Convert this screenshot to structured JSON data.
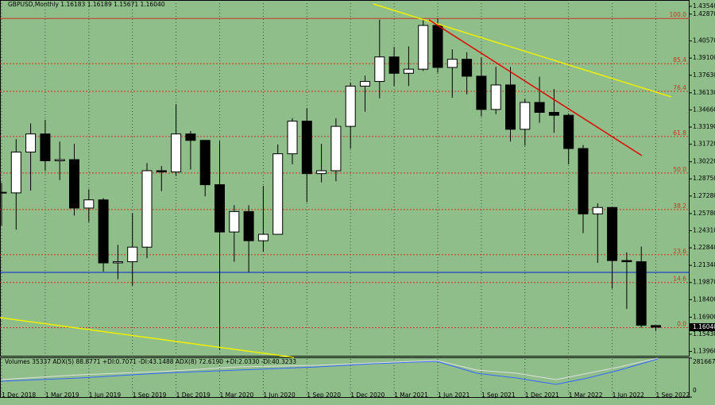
{
  "chart_data": {
    "type": "candlestick",
    "title": "GBPUSD,Monthly  1.16183 1.16189 1.15671 1.16040",
    "categories": [
      "1 Dec 2018",
      null,
      null,
      "1 Mar 2019",
      null,
      null,
      "1 Jun 2019",
      null,
      null,
      "1 Sep 2019",
      null,
      null,
      "1 Dec 2019",
      null,
      null,
      "1 Mar 2020",
      null,
      null,
      "1 Jun 2020",
      null,
      null,
      "1 Sep 2020",
      null,
      null,
      "1 Dec 2020",
      null,
      null,
      "1 Mar 2021",
      null,
      null,
      "1 Jun 2021",
      null,
      null,
      "1 Sep 2021",
      null,
      null,
      "1 Dec 2021",
      null,
      null,
      "1 Mar 2022",
      null,
      null,
      "1 Jun 2022",
      null,
      null,
      "1 Sep 2022"
    ],
    "open": [
      1.276,
      1.2755,
      1.3105,
      1.326,
      1.303,
      1.304,
      1.2625,
      1.2695,
      1.2155,
      1.2165,
      1.229,
      1.2945,
      1.2935,
      1.326,
      1.3205,
      1.2825,
      1.242,
      1.2595,
      1.2345,
      1.24,
      1.309,
      1.337,
      1.292,
      1.2945,
      1.3325,
      1.367,
      1.371,
      1.392,
      1.378,
      1.3815,
      1.419,
      1.383,
      1.39,
      1.3755,
      1.347,
      1.368,
      1.33,
      1.353,
      1.3445,
      1.342,
      1.3135,
      1.2575,
      1.263,
      1.2175,
      1.2165,
      1.16183
    ],
    "high": [
      1.284,
      1.3215,
      1.335,
      1.338,
      1.3195,
      1.3175,
      1.2785,
      1.271,
      1.231,
      1.258,
      1.301,
      1.2985,
      1.3515,
      1.3285,
      1.32,
      1.32,
      1.265,
      1.265,
      1.2815,
      1.317,
      1.3395,
      1.348,
      1.3175,
      1.3395,
      1.37,
      1.376,
      1.424,
      1.4005,
      1.401,
      1.4235,
      1.425,
      1.3985,
      1.396,
      1.3915,
      1.3835,
      1.3835,
      1.356,
      1.375,
      1.3645,
      1.3435,
      1.3165,
      1.2665,
      1.2615,
      1.2245,
      1.2295,
      1.16189
    ],
    "low": [
      1.2475,
      1.244,
      1.2775,
      1.2945,
      1.2865,
      1.256,
      1.2505,
      1.208,
      1.2015,
      1.196,
      1.2195,
      1.277,
      1.29,
      1.2955,
      1.2725,
      1.141,
      1.2165,
      1.2075,
      1.225,
      1.24,
      1.3,
      1.2675,
      1.2845,
      1.2855,
      1.3135,
      1.345,
      1.3565,
      1.367,
      1.367,
      1.38,
      1.3785,
      1.357,
      1.36,
      1.341,
      1.343,
      1.3195,
      1.316,
      1.3355,
      1.327,
      1.3,
      1.241,
      1.2155,
      1.1935,
      1.176,
      1.16,
      1.15671
    ],
    "close": [
      1.2755,
      1.3105,
      1.326,
      1.303,
      1.304,
      1.2625,
      1.2695,
      1.2155,
      1.2165,
      1.229,
      1.2945,
      1.2935,
      1.326,
      1.3205,
      1.2825,
      1.242,
      1.2595,
      1.2345,
      1.24,
      1.309,
      1.337,
      1.292,
      1.2945,
      1.3325,
      1.367,
      1.371,
      1.392,
      1.378,
      1.3815,
      1.419,
      1.383,
      1.39,
      1.3755,
      1.347,
      1.368,
      1.33,
      1.353,
      1.3445,
      1.342,
      1.3135,
      1.2575,
      1.263,
      1.2175,
      1.2165,
      1.162,
      1.1604
    ],
    "up_color": "#ffffff",
    "down_color": "#000000",
    "background": "#8fbe8a",
    "ylim": [
      1.1359,
      1.4408
    ],
    "yticks": [
      {
        "value": 1.4354,
        "label": "1.43540"
      },
      {
        "value": 1.4287,
        "label": "1.42870"
      },
      {
        "value": 1.4057,
        "label": "1.40570"
      },
      {
        "value": 1.391,
        "label": "1.39100"
      },
      {
        "value": 1.3763,
        "label": "1.37630"
      },
      {
        "value": 1.3613,
        "label": "1.36130"
      },
      {
        "value": 1.3466,
        "label": "1.34660"
      },
      {
        "value": 1.3319,
        "label": "1.33190"
      },
      {
        "value": 1.3172,
        "label": "1.31720"
      },
      {
        "value": 1.3022,
        "label": "1.30220"
      },
      {
        "value": 1.2875,
        "label": "1.28750"
      },
      {
        "value": 1.2728,
        "label": "1.27280"
      },
      {
        "value": 1.2578,
        "label": "1.25780"
      },
      {
        "value": 1.2431,
        "label": "1.24310"
      },
      {
        "value": 1.2284,
        "label": "1.22840"
      },
      {
        "value": 1.2134,
        "label": "1.21340"
      },
      {
        "value": 1.1987,
        "label": "1.19870"
      },
      {
        "value": 1.184,
        "label": "1.18400"
      },
      {
        "value": 1.169,
        "label": "1.16900"
      },
      {
        "value": 1.1543,
        "label": "1.15430"
      },
      {
        "value": 1.1396,
        "label": "1.13960"
      }
    ],
    "last_price": {
      "value": 1.1604,
      "label": "1.16040"
    },
    "fib_levels": [
      {
        "label": "100.0",
        "price": 1.425
      },
      {
        "label": "85.4",
        "price": 1.3863
      },
      {
        "label": "76.4",
        "price": 1.3625
      },
      {
        "label": "61.8",
        "price": 1.3238
      },
      {
        "label": "50.0",
        "price": 1.2925
      },
      {
        "label": "38.2",
        "price": 1.2612
      },
      {
        "label": "23.6",
        "price": 1.2225
      },
      {
        "label": "14.6",
        "price": 1.1987
      },
      {
        "label": "0.0",
        "price": 1.16
      }
    ],
    "fib_color": "#cc3322",
    "level_line": {
      "price": 1.2074,
      "color": "#0022cc"
    },
    "volume_label": "Volumes 35337  ADX(5) 88.8771 +DI:0.7071 -DI:43.1488  ADX(8) 72.6190 +DI:2.0330 -DI:40.3233",
    "volume_ylim": [
      0,
      281667
    ],
    "volume_yticks": [
      281667,
      0
    ],
    "grid": true
  }
}
